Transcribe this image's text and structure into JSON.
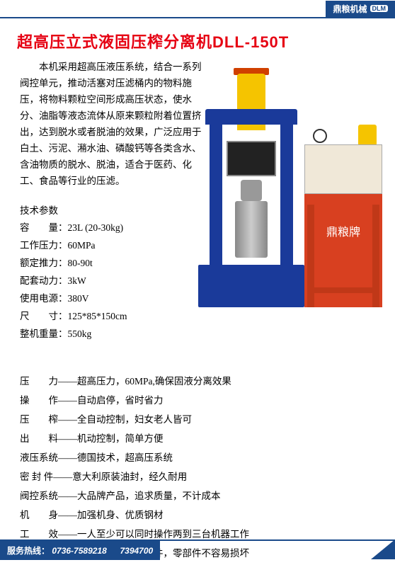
{
  "brand": {
    "name": "鼎粮机械",
    "logo": "DLM"
  },
  "title": "超高压立式液固压榨分离机DLL-150T",
  "intro": "本机采用超高压液压系统，结合一系列阀控单元，推动活塞对压滤桶内的物料施压，将物料颗粒空间形成高压状态，使水分、油脂等液态流体从原来颗粒附着位置挤出，达到脱水或者脱油的效果，广泛应用于白土、污泥、潲水油、磷酸钙等各类含水、含油物质的脱水、脱油，适合于医药、化工、食品等行业的压滤。",
  "specs_title": "技术参数",
  "specs": [
    {
      "label": "容　　量：",
      "value": "23L (20-30kg)"
    },
    {
      "label": "工作压力：",
      "value": "60MPa"
    },
    {
      "label": "额定推力：",
      "value": "80-90t"
    },
    {
      "label": "配套动力：",
      "value": "3kW"
    },
    {
      "label": "使用电源：",
      "value": "380V"
    },
    {
      "label": "尺　　寸：",
      "value": "125*85*150cm"
    },
    {
      "label": "整机重量：",
      "value": "550kg"
    }
  ],
  "machine_label": "鼎粮牌",
  "features": [
    {
      "label": "压　　力——",
      "value": "超高压力，60MPa,确保固液分离效果"
    },
    {
      "label": "操　　作——",
      "value": "自动启停，省时省力"
    },
    {
      "label": "压　　榨——",
      "value": "全自动控制，妇女老人皆可"
    },
    {
      "label": "出　　料——",
      "value": "机动控制，简单方便"
    },
    {
      "label": "液压系统——",
      "value": "德国技术，超高压系统"
    },
    {
      "label": "密 封 件——",
      "value": "意大利原装油封，经久耐用"
    },
    {
      "label": "阀控系统——",
      "value": "大品牌产品，追求质量，不计成本"
    },
    {
      "label": "机　　身——",
      "value": "加强机身、优质钢材"
    },
    {
      "label": "工　　效——",
      "value": "一人至少可以同时操作两到三台机器工作"
    },
    {
      "label": "维　　护——",
      "value": "主要部件均为钢制件，零部件不容易损坏"
    }
  ],
  "footer": {
    "label": "服务热线：",
    "phone1": "0736-7589218",
    "phone2": "7394700"
  },
  "colors": {
    "brand_blue": "#1a4a8a",
    "title_red": "#e60012",
    "text": "#000000",
    "machine_blue": "#1a3a9a",
    "machine_yellow": "#f5c400",
    "stand_red": "#d84020"
  }
}
